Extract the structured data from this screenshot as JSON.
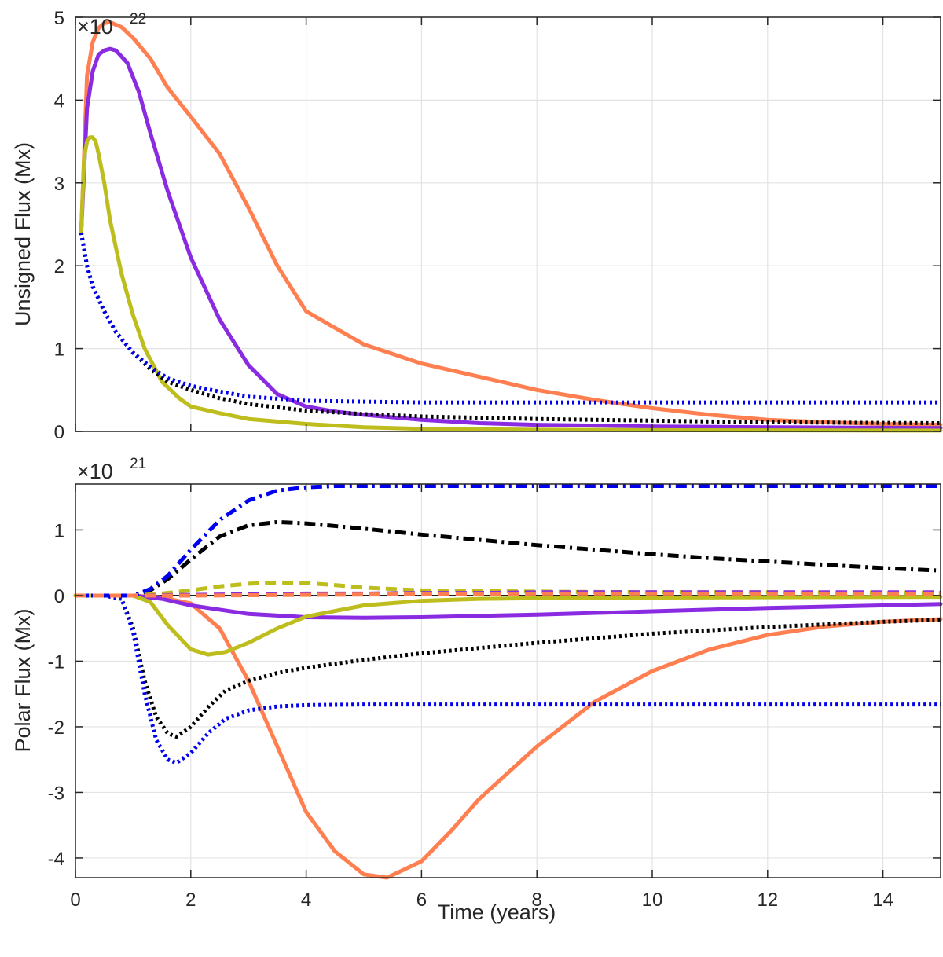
{
  "colors": {
    "orange": "#FF7F50",
    "purple": "#8A2BE2",
    "olive": "#BDBD1D",
    "black": "#000000",
    "blue": "#0000EE",
    "grid": "#E3E3E3",
    "axis": "#262626"
  },
  "chart_data": [
    {
      "type": "line",
      "panel": "top",
      "xlabel": "",
      "ylabel": "Unsigned Flux (Mx)",
      "multiplier_base": "×10",
      "multiplier_exponent": "22",
      "xlim": [
        0,
        15
      ],
      "ylim": [
        0,
        5
      ],
      "xticks": [
        0,
        2,
        4,
        6,
        8,
        10,
        12,
        14
      ],
      "yticks": [
        0,
        1,
        2,
        3,
        4,
        5
      ],
      "ytick_labels": [
        "0",
        "1",
        "2",
        "3",
        "4",
        "5"
      ],
      "grid": true,
      "series": [
        {
          "name": "orange-solid",
          "color": "orange",
          "style": "solid",
          "x": [
            0.1,
            0.2,
            0.3,
            0.4,
            0.5,
            0.6,
            0.8,
            1.0,
            1.3,
            1.6,
            2.0,
            2.5,
            3.0,
            3.5,
            4.0,
            5.0,
            6.0,
            7.0,
            8.0,
            9.0,
            10.0,
            11.0,
            12.0,
            13.0,
            14.0,
            15.0
          ],
          "y": [
            2.4,
            4.3,
            4.7,
            4.87,
            4.93,
            4.94,
            4.88,
            4.75,
            4.5,
            4.15,
            3.8,
            3.35,
            2.7,
            2.0,
            1.45,
            1.05,
            0.82,
            0.66,
            0.5,
            0.38,
            0.28,
            0.2,
            0.14,
            0.11,
            0.09,
            0.08
          ]
        },
        {
          "name": "purple-solid",
          "color": "purple",
          "style": "solid",
          "x": [
            0.1,
            0.2,
            0.3,
            0.4,
            0.5,
            0.6,
            0.7,
            0.9,
            1.1,
            1.3,
            1.6,
            2.0,
            2.5,
            3.0,
            3.5,
            4.0,
            4.5,
            5.0,
            6.0,
            7.0,
            8.0,
            9.0,
            10.0,
            12.0,
            15.0
          ],
          "y": [
            2.4,
            3.9,
            4.35,
            4.55,
            4.6,
            4.62,
            4.6,
            4.45,
            4.1,
            3.6,
            2.9,
            2.1,
            1.35,
            0.8,
            0.45,
            0.3,
            0.24,
            0.2,
            0.14,
            0.1,
            0.08,
            0.07,
            0.06,
            0.05,
            0.04
          ]
        },
        {
          "name": "olive-solid",
          "color": "olive",
          "style": "solid",
          "x": [
            0.1,
            0.15,
            0.2,
            0.25,
            0.3,
            0.35,
            0.4,
            0.5,
            0.6,
            0.8,
            1.0,
            1.2,
            1.5,
            1.8,
            2.0,
            2.5,
            3.0,
            4.0,
            5.0,
            6.0,
            8.0,
            10.0,
            15.0
          ],
          "y": [
            2.4,
            3.3,
            3.5,
            3.55,
            3.55,
            3.5,
            3.35,
            3.0,
            2.55,
            1.9,
            1.4,
            1.0,
            0.6,
            0.4,
            0.3,
            0.22,
            0.15,
            0.09,
            0.05,
            0.03,
            0.02,
            0.015,
            0.01
          ]
        },
        {
          "name": "black-dotted",
          "color": "black",
          "style": "dotted",
          "x": [
            0.1,
            0.2,
            0.3,
            0.5,
            0.7,
            1.0,
            1.3,
            1.6,
            2.0,
            2.5,
            3.0,
            4.0,
            5.0,
            6.0,
            8.0,
            10.0,
            12.0,
            15.0
          ],
          "y": [
            2.4,
            2.0,
            1.75,
            1.45,
            1.2,
            0.95,
            0.75,
            0.6,
            0.5,
            0.4,
            0.33,
            0.25,
            0.21,
            0.18,
            0.15,
            0.13,
            0.11,
            0.1
          ]
        },
        {
          "name": "blue-dotted",
          "color": "blue",
          "style": "dotted",
          "x": [
            0.1,
            0.2,
            0.3,
            0.5,
            0.7,
            1.0,
            1.3,
            1.6,
            2.0,
            2.5,
            3.0,
            4.0,
            5.0,
            6.0,
            8.0,
            10.0,
            12.0,
            15.0
          ],
          "y": [
            2.4,
            2.0,
            1.75,
            1.45,
            1.2,
            0.95,
            0.78,
            0.64,
            0.55,
            0.48,
            0.42,
            0.37,
            0.36,
            0.35,
            0.35,
            0.35,
            0.35,
            0.35
          ]
        }
      ]
    },
    {
      "type": "line",
      "panel": "bottom",
      "xlabel": "Time (years)",
      "ylabel": "Polar Flux (Mx)",
      "multiplier_base": "×10",
      "multiplier_exponent": "21",
      "xlim": [
        0,
        15
      ],
      "ylim": [
        -4.3,
        1.7
      ],
      "xticks": [
        0,
        2,
        4,
        6,
        8,
        10,
        12,
        14
      ],
      "xtick_labels": [
        "0",
        "2",
        "4",
        "6",
        "8",
        "10",
        "12",
        "14"
      ],
      "yticks": [
        -4,
        -3,
        -2,
        -1,
        0,
        1
      ],
      "ytick_labels": [
        "-4",
        "-3",
        "-2",
        "-1",
        "0",
        "1"
      ],
      "grid": true,
      "zero_line": true,
      "series": [
        {
          "name": "orange-solid",
          "color": "orange",
          "style": "solid",
          "x": [
            0,
            1.0,
            1.5,
            2.0,
            2.5,
            3.0,
            3.5,
            4.0,
            4.5,
            5.0,
            5.4,
            6.0,
            6.5,
            7.0,
            8.0,
            9.0,
            10.0,
            11.0,
            12.0,
            13.0,
            14.0,
            15.0
          ],
          "y": [
            0,
            0,
            -0.03,
            -0.12,
            -0.5,
            -1.3,
            -2.3,
            -3.3,
            -3.9,
            -4.25,
            -4.3,
            -4.05,
            -3.6,
            -3.1,
            -2.3,
            -1.62,
            -1.15,
            -0.82,
            -0.6,
            -0.47,
            -0.4,
            -0.36
          ]
        },
        {
          "name": "purple-solid",
          "color": "purple",
          "style": "solid",
          "x": [
            0,
            1.0,
            1.5,
            2.0,
            3.0,
            4.0,
            5.0,
            6.0,
            8.0,
            10.0,
            12.0,
            15.0
          ],
          "y": [
            0,
            0,
            -0.05,
            -0.15,
            -0.28,
            -0.33,
            -0.34,
            -0.33,
            -0.29,
            -0.24,
            -0.19,
            -0.13
          ]
        },
        {
          "name": "olive-solid",
          "color": "olive",
          "style": "solid",
          "x": [
            0,
            1.0,
            1.3,
            1.6,
            2.0,
            2.3,
            2.6,
            3.0,
            3.5,
            4.0,
            5.0,
            6.0,
            7.0,
            8.0,
            10.0,
            15.0
          ],
          "y": [
            0,
            0,
            -0.1,
            -0.45,
            -0.82,
            -0.9,
            -0.86,
            -0.72,
            -0.5,
            -0.32,
            -0.15,
            -0.08,
            -0.05,
            -0.04,
            -0.03,
            -0.02
          ]
        },
        {
          "name": "black-dotted",
          "color": "black",
          "style": "dotted",
          "x": [
            0,
            0.5,
            0.8,
            1.0,
            1.2,
            1.4,
            1.6,
            1.75,
            2.0,
            2.3,
            2.6,
            3.0,
            3.5,
            4.0,
            5.0,
            6.0,
            8.0,
            10.0,
            12.0,
            14.0,
            15.0
          ],
          "y": [
            0,
            0,
            -0.05,
            -0.5,
            -1.3,
            -1.85,
            -2.1,
            -2.15,
            -2.0,
            -1.7,
            -1.45,
            -1.3,
            -1.18,
            -1.1,
            -0.98,
            -0.88,
            -0.72,
            -0.58,
            -0.48,
            -0.4,
            -0.37
          ]
        },
        {
          "name": "blue-dotted",
          "color": "blue",
          "style": "dotted",
          "x": [
            0,
            0.5,
            0.8,
            1.0,
            1.2,
            1.4,
            1.6,
            1.75,
            2.0,
            2.3,
            2.6,
            3.0,
            3.5,
            4.0,
            5.0,
            6.0,
            8.0,
            10.0,
            12.0,
            15.0
          ],
          "y": [
            0,
            0,
            -0.05,
            -0.55,
            -1.5,
            -2.2,
            -2.5,
            -2.55,
            -2.4,
            -2.1,
            -1.88,
            -1.75,
            -1.69,
            -1.67,
            -1.66,
            -1.66,
            -1.66,
            -1.66,
            -1.66,
            -1.66
          ]
        },
        {
          "name": "black-dashdot",
          "color": "black",
          "style": "dashdot",
          "x": [
            0,
            1.0,
            1.3,
            1.6,
            2.0,
            2.5,
            3.0,
            3.5,
            4.0,
            5.0,
            6.0,
            7.0,
            8.0,
            9.0,
            10.0,
            11.0,
            12.0,
            13.0,
            14.0,
            15.0
          ],
          "y": [
            0,
            0,
            0.08,
            0.25,
            0.55,
            0.9,
            1.07,
            1.12,
            1.1,
            1.02,
            0.93,
            0.85,
            0.77,
            0.7,
            0.63,
            0.57,
            0.52,
            0.47,
            0.42,
            0.38
          ]
        },
        {
          "name": "blue-dashdot",
          "color": "blue",
          "style": "dashdot",
          "x": [
            0,
            1.0,
            1.3,
            1.6,
            2.0,
            2.5,
            3.0,
            3.5,
            4.0,
            4.5,
            5.0,
            6.0,
            8.0,
            10.0,
            12.0,
            15.0
          ],
          "y": [
            0,
            0,
            0.1,
            0.3,
            0.7,
            1.15,
            1.45,
            1.6,
            1.65,
            1.67,
            1.67,
            1.67,
            1.67,
            1.67,
            1.67,
            1.67
          ]
        },
        {
          "name": "olive-dashed",
          "color": "olive",
          "style": "dashed",
          "x": [
            0,
            1.0,
            1.5,
            2.0,
            2.5,
            3.0,
            3.5,
            4.0,
            4.5,
            5.0,
            5.5,
            6.0,
            7.0,
            8.0,
            10.0,
            12.0,
            15.0
          ],
          "y": [
            0,
            0,
            0.03,
            0.08,
            0.14,
            0.18,
            0.2,
            0.19,
            0.16,
            0.12,
            0.1,
            0.08,
            0.07,
            0.06,
            0.05,
            0.05,
            0.04
          ]
        },
        {
          "name": "purple-dashed",
          "color": "purple",
          "style": "dashed",
          "x": [
            0,
            1.0,
            2.0,
            3.0,
            4.0,
            5.0,
            6.0,
            7.0,
            8.0,
            10.0,
            12.0,
            15.0
          ],
          "y": [
            0,
            0,
            0.01,
            0.02,
            0.03,
            0.03,
            0.04,
            0.04,
            0.05,
            0.05,
            0.05,
            0.05
          ]
        },
        {
          "name": "orange-dashed",
          "color": "orange",
          "style": "dashed",
          "x": [
            0,
            2.0,
            4.0,
            6.0,
            8.0,
            10.0,
            12.0,
            15.0
          ],
          "y": [
            0,
            0,
            0.01,
            0.02,
            0.03,
            0.03,
            0.03,
            0.03
          ]
        }
      ]
    }
  ]
}
